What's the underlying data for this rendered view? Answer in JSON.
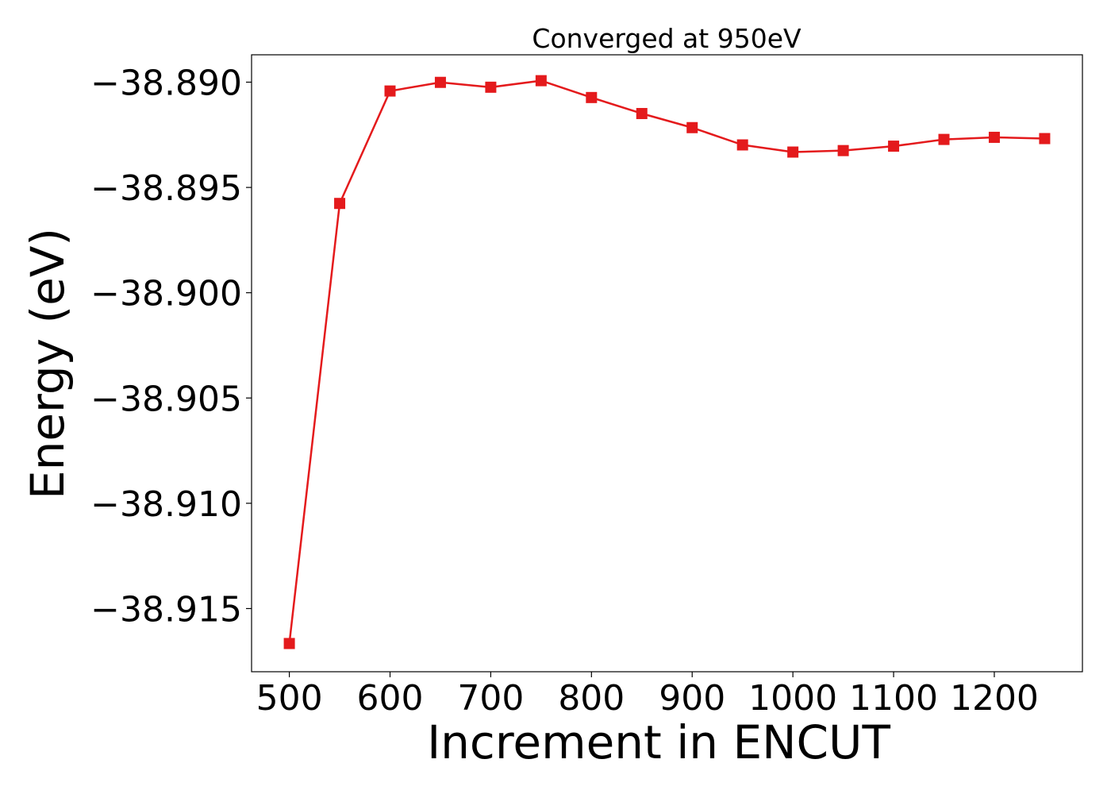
{
  "chart_data": {
    "type": "line",
    "title": "Converged at 950eV",
    "xlabel": "Increment in ENCUT",
    "ylabel": "Energy (eV)",
    "x": [
      500,
      550,
      600,
      650,
      700,
      750,
      800,
      850,
      900,
      950,
      1000,
      1050,
      1100,
      1150,
      1200,
      1250
    ],
    "series": [
      {
        "values": [
          -38.91666,
          -38.89576,
          -38.89042,
          -38.89001,
          -38.89024,
          -38.88993,
          -38.89073,
          -38.89149,
          -38.89216,
          -38.89298,
          -38.89332,
          -38.89325,
          -38.89304,
          -38.89272,
          -38.89262,
          -38.89268
        ],
        "color": "#e41a1c",
        "marker": "square"
      }
    ],
    "xticks": [
      500,
      600,
      700,
      800,
      900,
      1000,
      1100,
      1200
    ],
    "yticks": [
      -38.915,
      -38.91,
      -38.905,
      -38.9,
      -38.895,
      -38.89
    ],
    "ytick_labels": [
      "−38.915",
      "−38.910",
      "−38.905",
      "−38.900",
      "−38.895",
      "−38.890"
    ],
    "xlim": [
      462.5,
      1287.5
    ],
    "ylim": [
      -38.918,
      -38.8887
    ],
    "grid": false,
    "legend": "none"
  }
}
